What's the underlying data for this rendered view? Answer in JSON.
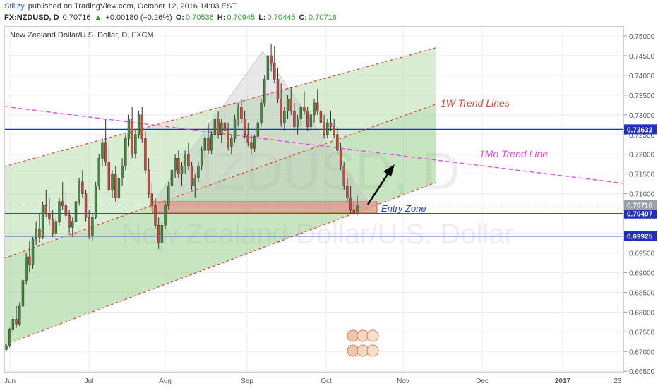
{
  "header": {
    "author": "Stiiizy",
    "published": "published on TradingView.com, October 12, 2016 14:03 EST",
    "symbol": "FX:NZDUSD, D",
    "last": "0.70716",
    "change": "+0.00180 (+0.26%)",
    "ohlc": [
      {
        "label": "O:",
        "value": "0.70536"
      },
      {
        "label": "H:",
        "value": "0.70945"
      },
      {
        "label": "L:",
        "value": "0.70445"
      },
      {
        "label": "C:",
        "value": "0.70716"
      }
    ]
  },
  "chart_data": {
    "type": "candlestick",
    "title": "New Zealand Dollar/U.S. Dollar, D, FXCM",
    "watermark": [
      "NZDUSD, D",
      "New Zealand Dollar/U.S. Dollar"
    ],
    "x_ticks": [
      "Jun",
      "Jul",
      "Aug",
      "Sep",
      "Oct",
      "Nov",
      "Dec",
      "2017",
      "23"
    ],
    "y_ticks": [
      "0.75000",
      "0.74500",
      "0.74000",
      "0.73500",
      "0.73000",
      "0.72500",
      "0.72000",
      "0.71500",
      "0.71000",
      "0.70500",
      "0.70000",
      "0.69500",
      "0.69000",
      "0.68500",
      "0.68000",
      "0.67500",
      "0.67000",
      "0.66500"
    ],
    "ylim": [
      0.6645,
      0.7525
    ],
    "price_lines": [
      {
        "value": 0.72632,
        "label": "0.72632",
        "color": "#1f2fbf"
      },
      {
        "value": 0.70497,
        "label": "0.70497",
        "color": "#1f2fbf"
      },
      {
        "value": 0.70716,
        "label": "0.70716",
        "color": "#9aa0a6"
      },
      {
        "value": 0.69925,
        "label": "0.69925",
        "color": "#1f2fbf"
      }
    ],
    "annotations": {
      "weekly": "1W Trend Lines",
      "monthly": "1Mo Trend Line",
      "entry": "Entry Zone"
    },
    "colors": {
      "up": "#3f8f3f",
      "down": "#d9453a",
      "channel": "#7cc26c",
      "magenta": "#e04be0",
      "entry": "#e0968c"
    },
    "candles": [
      [
        0.6705,
        0.672,
        0.67,
        0.6715
      ],
      [
        0.6715,
        0.676,
        0.671,
        0.6755
      ],
      [
        0.6755,
        0.679,
        0.6745,
        0.6782
      ],
      [
        0.6782,
        0.6815,
        0.676,
        0.677
      ],
      [
        0.677,
        0.6825,
        0.6765,
        0.6815
      ],
      [
        0.6815,
        0.689,
        0.681,
        0.688
      ],
      [
        0.688,
        0.695,
        0.687,
        0.694
      ],
      [
        0.694,
        0.698,
        0.69,
        0.692
      ],
      [
        0.692,
        0.699,
        0.691,
        0.6985
      ],
      [
        0.6985,
        0.703,
        0.697,
        0.701
      ],
      [
        0.701,
        0.705,
        0.6975,
        0.699
      ],
      [
        0.699,
        0.708,
        0.6985,
        0.707
      ],
      [
        0.707,
        0.711,
        0.704,
        0.705
      ],
      [
        0.705,
        0.709,
        0.702,
        0.7035
      ],
      [
        0.7035,
        0.706,
        0.699,
        0.7
      ],
      [
        0.7,
        0.7045,
        0.6985,
        0.703
      ],
      [
        0.703,
        0.709,
        0.702,
        0.708
      ],
      [
        0.708,
        0.713,
        0.706,
        0.707
      ],
      [
        0.707,
        0.71,
        0.703,
        0.7045
      ],
      [
        0.7045,
        0.706,
        0.7,
        0.7015
      ],
      [
        0.7015,
        0.704,
        0.699,
        0.703
      ],
      [
        0.703,
        0.709,
        0.702,
        0.708
      ],
      [
        0.708,
        0.714,
        0.707,
        0.713
      ],
      [
        0.713,
        0.716,
        0.709,
        0.71
      ],
      [
        0.71,
        0.711,
        0.703,
        0.704
      ],
      [
        0.704,
        0.706,
        0.6985,
        0.6995
      ],
      [
        0.6995,
        0.705,
        0.698,
        0.704
      ],
      [
        0.704,
        0.713,
        0.7035,
        0.712
      ],
      [
        0.712,
        0.72,
        0.711,
        0.719
      ],
      [
        0.719,
        0.724,
        0.717,
        0.723
      ],
      [
        0.723,
        0.729,
        0.717,
        0.718
      ],
      [
        0.718,
        0.722,
        0.71,
        0.711
      ],
      [
        0.711,
        0.716,
        0.709,
        0.715
      ],
      [
        0.715,
        0.717,
        0.708,
        0.709
      ],
      [
        0.709,
        0.715,
        0.708,
        0.714
      ],
      [
        0.714,
        0.719,
        0.712,
        0.717
      ],
      [
        0.717,
        0.725,
        0.716,
        0.724
      ],
      [
        0.724,
        0.73,
        0.722,
        0.729
      ],
      [
        0.729,
        0.732,
        0.719,
        0.72
      ],
      [
        0.72,
        0.726,
        0.719,
        0.725
      ],
      [
        0.725,
        0.731,
        0.724,
        0.73
      ],
      [
        0.73,
        0.732,
        0.723,
        0.724
      ],
      [
        0.724,
        0.726,
        0.715,
        0.716
      ],
      [
        0.716,
        0.719,
        0.709,
        0.71
      ],
      [
        0.71,
        0.713,
        0.706,
        0.707
      ],
      [
        0.707,
        0.709,
        0.701,
        0.702
      ],
      [
        0.702,
        0.704,
        0.696,
        0.6975
      ],
      [
        0.6975,
        0.703,
        0.695,
        0.702
      ],
      [
        0.702,
        0.708,
        0.701,
        0.707
      ],
      [
        0.707,
        0.713,
        0.706,
        0.712
      ],
      [
        0.712,
        0.717,
        0.711,
        0.716
      ],
      [
        0.716,
        0.72,
        0.714,
        0.719
      ],
      [
        0.719,
        0.721,
        0.714,
        0.715
      ],
      [
        0.715,
        0.718,
        0.712,
        0.717
      ],
      [
        0.717,
        0.721,
        0.715,
        0.72
      ],
      [
        0.72,
        0.723,
        0.716,
        0.717
      ],
      [
        0.717,
        0.718,
        0.711,
        0.712
      ],
      [
        0.712,
        0.715,
        0.709,
        0.714
      ],
      [
        0.714,
        0.718,
        0.713,
        0.717
      ],
      [
        0.717,
        0.722,
        0.716,
        0.721
      ],
      [
        0.721,
        0.725,
        0.719,
        0.724
      ],
      [
        0.724,
        0.728,
        0.72,
        0.721
      ],
      [
        0.721,
        0.726,
        0.72,
        0.725
      ],
      [
        0.725,
        0.73,
        0.724,
        0.729
      ],
      [
        0.729,
        0.731,
        0.724,
        0.725
      ],
      [
        0.725,
        0.729,
        0.723,
        0.728
      ],
      [
        0.728,
        0.731,
        0.725,
        0.726
      ],
      [
        0.726,
        0.728,
        0.721,
        0.722
      ],
      [
        0.722,
        0.725,
        0.72,
        0.724
      ],
      [
        0.724,
        0.73,
        0.723,
        0.729
      ],
      [
        0.729,
        0.733,
        0.727,
        0.732
      ],
      [
        0.732,
        0.734,
        0.728,
        0.729
      ],
      [
        0.729,
        0.731,
        0.724,
        0.725
      ],
      [
        0.725,
        0.728,
        0.722,
        0.723
      ],
      [
        0.723,
        0.725,
        0.72,
        0.7215
      ],
      [
        0.7215,
        0.725,
        0.7205,
        0.7245
      ],
      [
        0.7245,
        0.729,
        0.7235,
        0.728
      ],
      [
        0.728,
        0.734,
        0.727,
        0.733
      ],
      [
        0.733,
        0.74,
        0.732,
        0.739
      ],
      [
        0.739,
        0.746,
        0.738,
        0.745
      ],
      [
        0.745,
        0.748,
        0.741,
        0.743
      ],
      [
        0.743,
        0.7475,
        0.738,
        0.739
      ],
      [
        0.739,
        0.742,
        0.733,
        0.734
      ],
      [
        0.734,
        0.738,
        0.727,
        0.728
      ],
      [
        0.728,
        0.732,
        0.726,
        0.731
      ],
      [
        0.731,
        0.735,
        0.729,
        0.734
      ],
      [
        0.734,
        0.737,
        0.73,
        0.731
      ],
      [
        0.731,
        0.733,
        0.726,
        0.727
      ],
      [
        0.727,
        0.73,
        0.725,
        0.729
      ],
      [
        0.729,
        0.733,
        0.727,
        0.732
      ],
      [
        0.732,
        0.736,
        0.73,
        0.731
      ],
      [
        0.731,
        0.732,
        0.726,
        0.727
      ],
      [
        0.727,
        0.731,
        0.726,
        0.73
      ],
      [
        0.73,
        0.734,
        0.728,
        0.733
      ],
      [
        0.733,
        0.7365,
        0.73,
        0.731
      ],
      [
        0.731,
        0.733,
        0.727,
        0.728
      ],
      [
        0.728,
        0.73,
        0.724,
        0.725
      ],
      [
        0.725,
        0.729,
        0.724,
        0.728
      ],
      [
        0.728,
        0.731,
        0.726,
        0.727
      ],
      [
        0.727,
        0.729,
        0.724,
        0.725
      ],
      [
        0.725,
        0.727,
        0.72,
        0.721
      ],
      [
        0.721,
        0.723,
        0.716,
        0.717
      ],
      [
        0.717,
        0.718,
        0.711,
        0.712
      ],
      [
        0.712,
        0.714,
        0.708,
        0.709
      ],
      [
        0.709,
        0.712,
        0.705,
        0.706
      ],
      [
        0.706,
        0.708,
        0.7045,
        0.705
      ],
      [
        0.7054,
        0.70945,
        0.70445,
        0.70716
      ]
    ]
  }
}
